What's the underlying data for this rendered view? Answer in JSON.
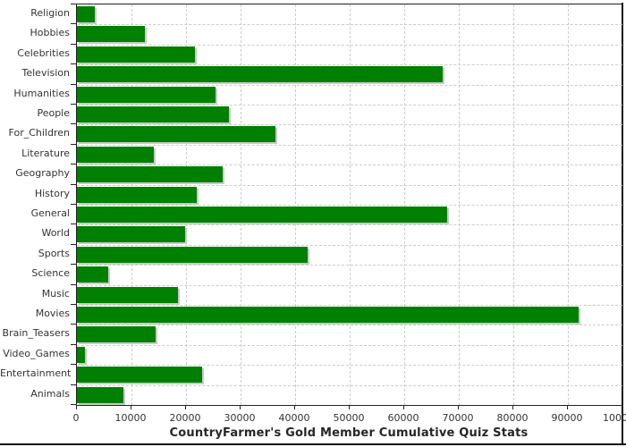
{
  "chart_data": {
    "type": "bar",
    "orientation": "horizontal",
    "title": "CountryFarmer's Gold Member Cumulative Quiz Stats",
    "categories": [
      "Religion",
      "Hobbies",
      "Celebrities",
      "Television",
      "Humanities",
      "People",
      "For_Children",
      "Literature",
      "Geography",
      "History",
      "General",
      "World",
      "Sports",
      "Science",
      "Music",
      "Movies",
      "Brain_Teasers",
      "Video_Games",
      "Entertainment",
      "Animals"
    ],
    "values": [
      3300,
      12500,
      21700,
      67000,
      25400,
      27900,
      36400,
      14100,
      26700,
      21900,
      67800,
      19800,
      42300,
      5700,
      18500,
      92000,
      14400,
      1500,
      23000,
      8600
    ],
    "xlim": [
      0,
      100000
    ],
    "x_ticks": [
      0,
      10000,
      20000,
      30000,
      40000,
      50000,
      60000,
      70000,
      80000,
      90000,
      100000
    ],
    "xlabel": "",
    "ylabel": "",
    "grid": true,
    "legend_position": "none",
    "bar_color": "#008000",
    "bar_shadow_color": "#c9c9c9",
    "grid_color": "#cccccc",
    "axis_color": "#222222",
    "text_color": "#333333",
    "background_color": "#ffffff"
  }
}
